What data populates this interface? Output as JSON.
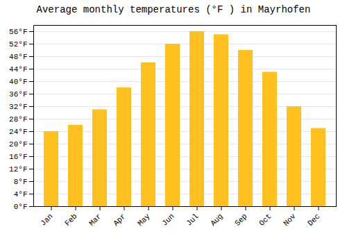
{
  "chart_data": {
    "type": "bar",
    "title": "Average monthly temperatures (°F ) in Mayrhofen",
    "categories": [
      "Jan",
      "Feb",
      "Mar",
      "Apr",
      "May",
      "Jun",
      "Jul",
      "Aug",
      "Sep",
      "Oct",
      "Nov",
      "Dec"
    ],
    "values": [
      24,
      26,
      31,
      38,
      46,
      52,
      56,
      55,
      50,
      43,
      32,
      25
    ],
    "color": "#FFC020",
    "ylim": [
      0,
      58
    ],
    "yticks": [
      {
        "value": 0,
        "label": "0°F"
      },
      {
        "value": 4,
        "label": "4°F"
      },
      {
        "value": 8,
        "label": "8°F"
      },
      {
        "value": 12,
        "label": "12°F"
      },
      {
        "value": 16,
        "label": "16°F"
      },
      {
        "value": 20,
        "label": "20°F"
      },
      {
        "value": 24,
        "label": "24°F"
      },
      {
        "value": 28,
        "label": "28°F"
      },
      {
        "value": 32,
        "label": "32°F"
      },
      {
        "value": 36,
        "label": "36°F"
      },
      {
        "value": 40,
        "label": "40°F"
      },
      {
        "value": 44,
        "label": "44°F"
      },
      {
        "value": 48,
        "label": "48°F"
      },
      {
        "value": 52,
        "label": "52°F"
      },
      {
        "value": 56,
        "label": "56°F"
      }
    ],
    "grid": true
  }
}
